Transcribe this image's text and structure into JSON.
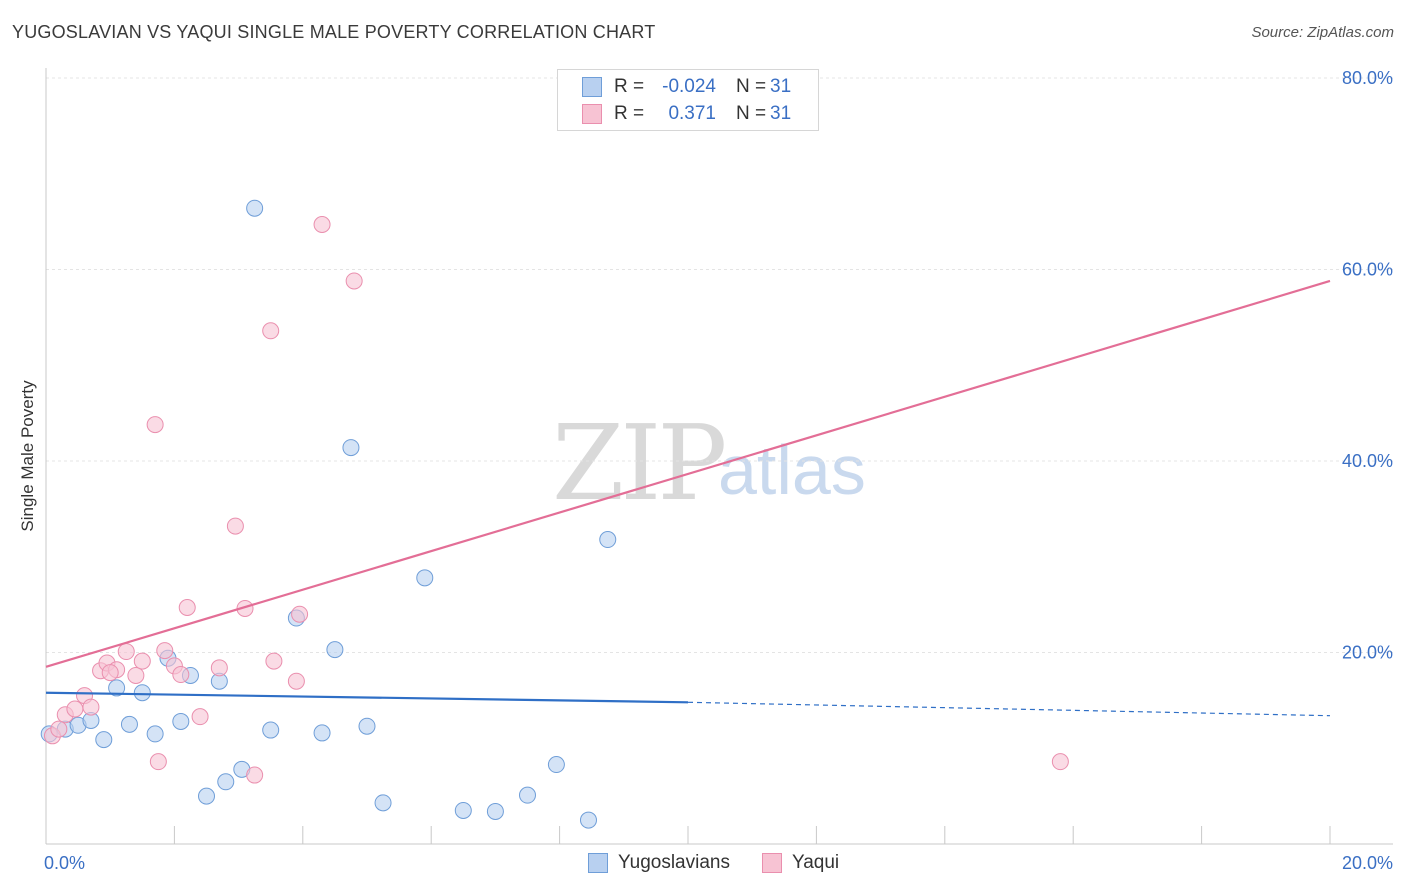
{
  "title": "YUGOSLAVIAN VS YAQUI SINGLE MALE POVERTY CORRELATION CHART",
  "source": "Source: ZipAtlas.com",
  "watermark": {
    "zip": "ZIP",
    "atlas": "atlas"
  },
  "legend_top": [
    {
      "r_label": "R =",
      "r_value": "-0.024",
      "n_label": "N =",
      "n_value": "31"
    },
    {
      "r_label": "R =",
      "r_value": "0.371",
      "n_label": "N =",
      "n_value": "31"
    }
  ],
  "colors": {
    "blue_fill": "#b8d0f0",
    "blue_stroke": "#6f9ed8",
    "blue_line": "#2f6fc6",
    "pink_fill": "#f7c3d3",
    "pink_stroke": "#ea8fae",
    "pink_line": "#e36e96",
    "tick_label": "#3a6fc4"
  },
  "chart_data": {
    "type": "scatter",
    "title": "YUGOSLAVIAN VS YAQUI SINGLE MALE POVERTY CORRELATION CHART",
    "xlabel": "",
    "ylabel": "Single Male Poverty",
    "xlim": [
      0,
      20
    ],
    "ylim": [
      0,
      80
    ],
    "x_tick_labels": [
      "0.0%",
      "20.0%"
    ],
    "y_ticks": [
      20,
      40,
      60,
      80
    ],
    "y_tick_labels": [
      "20.0%",
      "40.0%",
      "60.0%",
      "80.0%"
    ],
    "series": [
      {
        "name": "Yugoslavians",
        "color": "blue",
        "points": [
          [
            0.05,
            11.5
          ],
          [
            0.3,
            12.0
          ],
          [
            0.5,
            12.4
          ],
          [
            0.7,
            12.9
          ],
          [
            0.9,
            10.9
          ],
          [
            1.1,
            16.3
          ],
          [
            1.5,
            15.8
          ],
          [
            1.3,
            12.5
          ],
          [
            1.7,
            11.5
          ],
          [
            1.9,
            19.4
          ],
          [
            2.1,
            12.8
          ],
          [
            2.25,
            17.6
          ],
          [
            2.5,
            5.0
          ],
          [
            2.7,
            17.0
          ],
          [
            2.8,
            6.5
          ],
          [
            3.05,
            7.8
          ],
          [
            3.25,
            66.4
          ],
          [
            3.5,
            11.9
          ],
          [
            3.9,
            23.6
          ],
          [
            4.3,
            11.6
          ],
          [
            4.5,
            20.3
          ],
          [
            4.75,
            41.4
          ],
          [
            5.0,
            12.3
          ],
          [
            5.25,
            4.3
          ],
          [
            5.9,
            27.8
          ],
          [
            6.5,
            3.5
          ],
          [
            7.0,
            3.4
          ],
          [
            7.5,
            5.1
          ],
          [
            7.95,
            8.3
          ],
          [
            8.45,
            2.5
          ],
          [
            8.75,
            31.8
          ]
        ]
      },
      {
        "name": "Yaqui",
        "color": "pink",
        "points": [
          [
            0.1,
            11.3
          ],
          [
            0.3,
            13.5
          ],
          [
            0.45,
            14.1
          ],
          [
            0.6,
            15.5
          ],
          [
            0.7,
            14.3
          ],
          [
            0.85,
            18.1
          ],
          [
            0.95,
            18.9
          ],
          [
            1.1,
            18.2
          ],
          [
            1.25,
            20.1
          ],
          [
            1.4,
            17.6
          ],
          [
            1.5,
            19.1
          ],
          [
            1.7,
            43.8
          ],
          [
            1.75,
            8.6
          ],
          [
            1.85,
            20.2
          ],
          [
            2.0,
            18.6
          ],
          [
            2.1,
            17.7
          ],
          [
            2.2,
            24.7
          ],
          [
            2.4,
            13.3
          ],
          [
            2.7,
            18.4
          ],
          [
            2.95,
            33.2
          ],
          [
            3.1,
            24.6
          ],
          [
            3.25,
            7.2
          ],
          [
            3.5,
            53.6
          ],
          [
            3.55,
            19.1
          ],
          [
            3.9,
            17.0
          ],
          [
            3.95,
            24.0
          ],
          [
            4.3,
            64.7
          ],
          [
            4.8,
            58.8
          ],
          [
            15.8,
            8.6
          ],
          [
            0.2,
            12.0
          ],
          [
            1.0,
            17.9
          ]
        ]
      }
    ],
    "trend_lines": [
      {
        "series": "Yugoslavians",
        "x_start": 0,
        "y_start": 15.8,
        "x_end_solid": 10,
        "y_end_solid": 14.8,
        "x_end": 20,
        "y_end": 13.4
      },
      {
        "series": "Yaqui",
        "x_start": 0,
        "y_start": 18.5,
        "x_end": 20,
        "y_end": 58.8
      }
    ],
    "legend": [
      "Yugoslavians",
      "Yaqui"
    ]
  }
}
